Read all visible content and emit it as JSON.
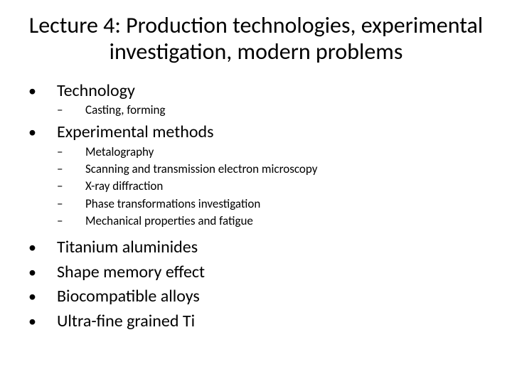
{
  "colors": {
    "background": "#ffffff",
    "text": "#000000"
  },
  "typography": {
    "family": "Calibri, 'Segoe UI', Arial, sans-serif",
    "title_fontsize_pt": 24,
    "lvl1_fontsize_pt": 18,
    "lvl2_fontsize_pt": 13
  },
  "title": "Lecture 4: Production technologies, experimental investigation, modern problems",
  "bullet_char": "•",
  "dash_char": "–",
  "items": [
    {
      "text": "Technology",
      "subitems": [
        "Casting, forming"
      ]
    },
    {
      "text": "Experimental methods",
      "subitems": [
        "Metalography",
        "Scanning and transmission electron microscopy",
        "X-ray diffraction",
        "Phase transformations investigation",
        "Mechanical properties and fatigue"
      ]
    },
    {
      "text": "Titanium aluminides",
      "subitems": []
    },
    {
      "text": "Shape memory effect",
      "subitems": []
    },
    {
      "text": "Biocompatible alloys",
      "subitems": []
    },
    {
      "text": "Ultra-fine grained Ti",
      "subitems": []
    }
  ]
}
